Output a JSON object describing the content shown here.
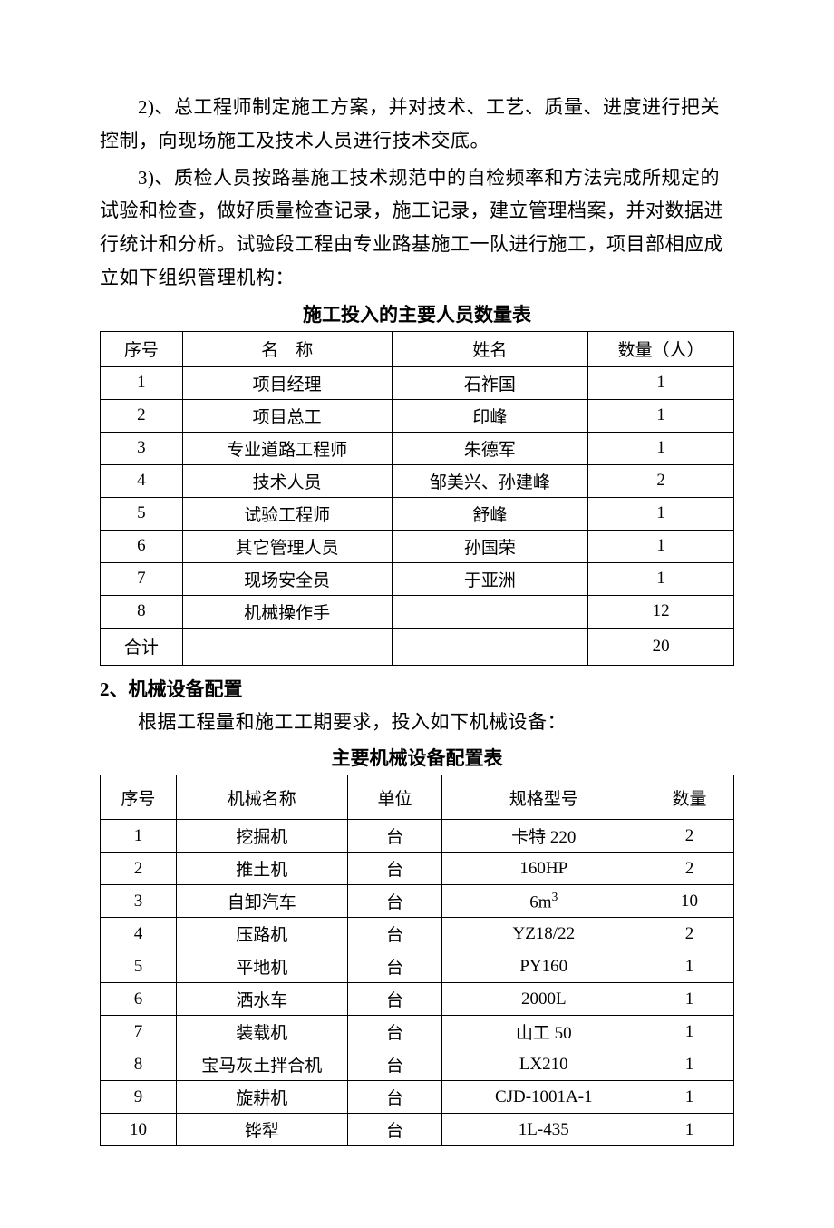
{
  "paragraphs": {
    "p1": "2)、总工程师制定施工方案，并对技术、工艺、质量、进度进行把关控制，向现场施工及技术人员进行技术交底。",
    "p2": "3)、质检人员按路基施工技术规范中的自检频率和方法完成所规定的试验和检查，做好质量检查记录，施工记录，建立管理档案，并对数据进行统计和分析。试验段工程由专业路基施工一队进行施工，项目部相应成立如下组织管理机构："
  },
  "personnel_table": {
    "title": "施工投入的主要人员数量表",
    "columns": {
      "c1": "序号",
      "c2": "名",
      "c2b": "称",
      "c3": "姓名",
      "c4": "数量（人）"
    },
    "col_widths": [
      "13%",
      "33%",
      "31%",
      "23%"
    ],
    "rows": [
      {
        "no": "1",
        "role": "项目经理",
        "name": "石祚国",
        "qty": "1"
      },
      {
        "no": "2",
        "role": "项目总工",
        "name": "印峰",
        "qty": "1"
      },
      {
        "no": "3",
        "role": "专业道路工程师",
        "name": "朱德军",
        "qty": "1"
      },
      {
        "no": "4",
        "role": "技术人员",
        "name": "邹美兴、孙建峰",
        "qty": "2"
      },
      {
        "no": "5",
        "role": "试验工程师",
        "name": "舒峰",
        "qty": "1"
      },
      {
        "no": "6",
        "role": "其它管理人员",
        "name": "孙国荣",
        "qty": "1"
      },
      {
        "no": "7",
        "role": "现场安全员",
        "name": "于亚洲",
        "qty": "1"
      },
      {
        "no": "8",
        "role": "机械操作手",
        "name": "",
        "qty": "12"
      }
    ],
    "total_label": "合计",
    "total_qty": "20"
  },
  "section2": {
    "head": "2、机械设备配置",
    "intro": "根据工程量和施工工期要求，投入如下机械设备："
  },
  "equipment_table": {
    "title": "主要机械设备配置表",
    "columns": {
      "c1": "序号",
      "c2": "机械名称",
      "c3": "单位",
      "c4": "规格型号",
      "c5": "数量"
    },
    "col_widths": [
      "12%",
      "27%",
      "15%",
      "32%",
      "14%"
    ],
    "rows": [
      {
        "no": "1",
        "name": "挖掘机",
        "unit": "台",
        "spec": "卡特 220",
        "qty": "2"
      },
      {
        "no": "2",
        "name": "推土机",
        "unit": "台",
        "spec": "160HP",
        "qty": "2"
      },
      {
        "no": "3",
        "name": "自卸汽车",
        "unit": "台",
        "spec_html": "6m³",
        "qty": "10"
      },
      {
        "no": "4",
        "name": "压路机",
        "unit": "台",
        "spec": "YZ18/22",
        "qty": "2"
      },
      {
        "no": "5",
        "name": "平地机",
        "unit": "台",
        "spec": "PY160",
        "qty": "1"
      },
      {
        "no": "6",
        "name": "洒水车",
        "unit": "台",
        "spec": "2000L",
        "qty": "1"
      },
      {
        "no": "7",
        "name": "装载机",
        "unit": "台",
        "spec": "山工 50",
        "qty": "1"
      },
      {
        "no": "8",
        "name": "宝马灰土拌合机",
        "unit": "台",
        "spec": "LX210",
        "qty": "1"
      },
      {
        "no": "9",
        "name": "旋耕机",
        "unit": "台",
        "spec": "CJD-1001A-1",
        "qty": "1"
      },
      {
        "no": "10",
        "name": "铧犁",
        "unit": "台",
        "spec": "1L-435",
        "qty": "1"
      }
    ]
  }
}
